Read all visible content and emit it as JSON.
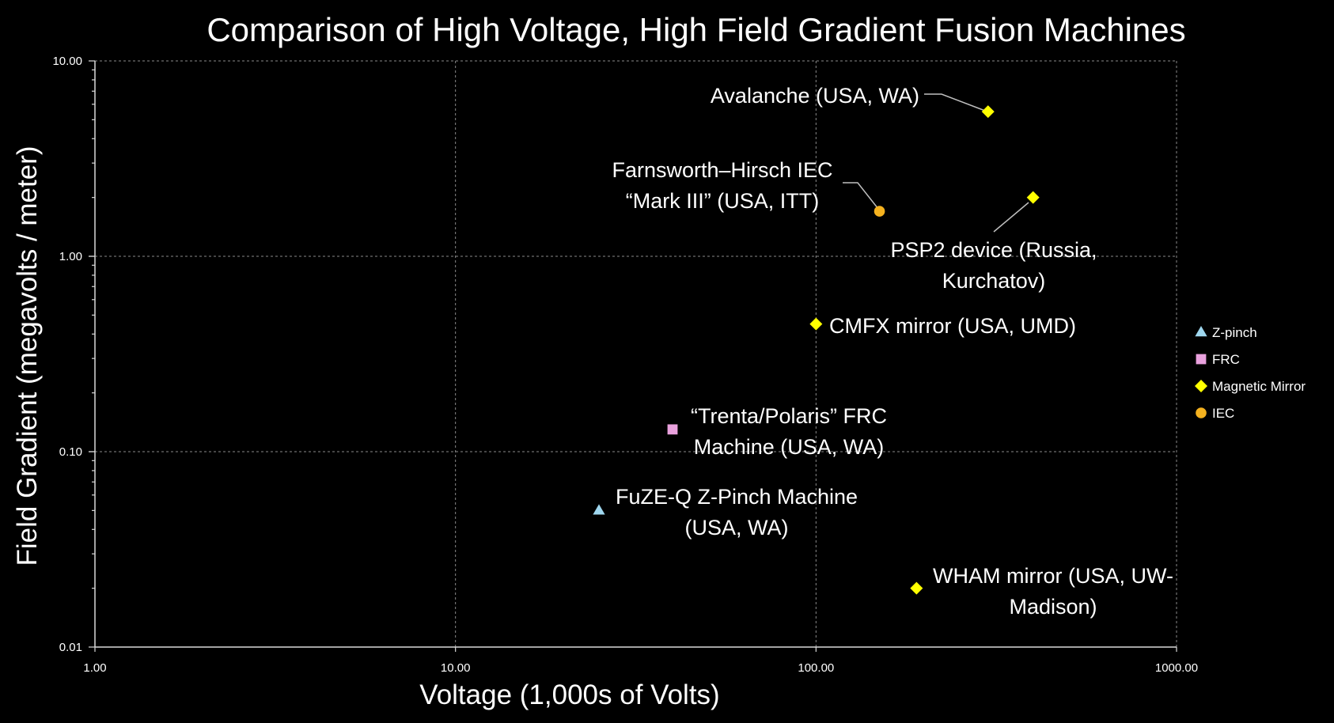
{
  "chart_data": {
    "type": "scatter",
    "title": "Comparison of High Voltage, High Field Gradient Fusion Machines",
    "xlabel": "Voltage (1,000s of Volts)",
    "ylabel": "Field Gradient (megavolts / meter)",
    "x_scale": "log",
    "y_scale": "log",
    "xlim": [
      1,
      1000
    ],
    "ylim": [
      0.01,
      10
    ],
    "x_tick_labels": [
      "1.00",
      "10.00",
      "100.00",
      "1000.00"
    ],
    "y_tick_labels": [
      "0.01",
      "0.10",
      "1.00",
      "10.00"
    ],
    "grid": true,
    "legend_position": "right",
    "series": [
      {
        "name": "Z-pinch",
        "marker": "triangle",
        "color": "#9fd7ef",
        "points": [
          {
            "x": 25,
            "y": 0.05,
            "label": [
              "FuZE-Q Z-Pinch Machine",
              "(USA, WA)"
            ]
          }
        ]
      },
      {
        "name": "FRC",
        "marker": "square",
        "color": "#e9a1dd",
        "points": [
          {
            "x": 40,
            "y": 0.13,
            "label": [
              "“Trenta/Polaris” FRC",
              "Machine (USA, WA)"
            ]
          }
        ]
      },
      {
        "name": "Magnetic Mirror",
        "marker": "diamond",
        "color": "#ffff00",
        "points": [
          {
            "x": 300,
            "y": 5.5,
            "label": [
              "Avalanche (USA, WA)"
            ]
          },
          {
            "x": 400,
            "y": 2.0,
            "label": [
              "PSP2 device (Russia,",
              "Kurchatov)"
            ]
          },
          {
            "x": 100,
            "y": 0.45,
            "label": [
              "CMFX mirror (USA, UMD)"
            ]
          },
          {
            "x": 190,
            "y": 0.02,
            "label": [
              "WHAM mirror (USA, UW-",
              "Madison)"
            ]
          }
        ]
      },
      {
        "name": "IEC",
        "marker": "circle",
        "color": "#f5b21f",
        "points": [
          {
            "x": 150,
            "y": 1.7,
            "label": [
              "Farnsworth–Hirsch IEC",
              "“Mark III” (USA, ITT)"
            ]
          }
        ]
      }
    ]
  }
}
